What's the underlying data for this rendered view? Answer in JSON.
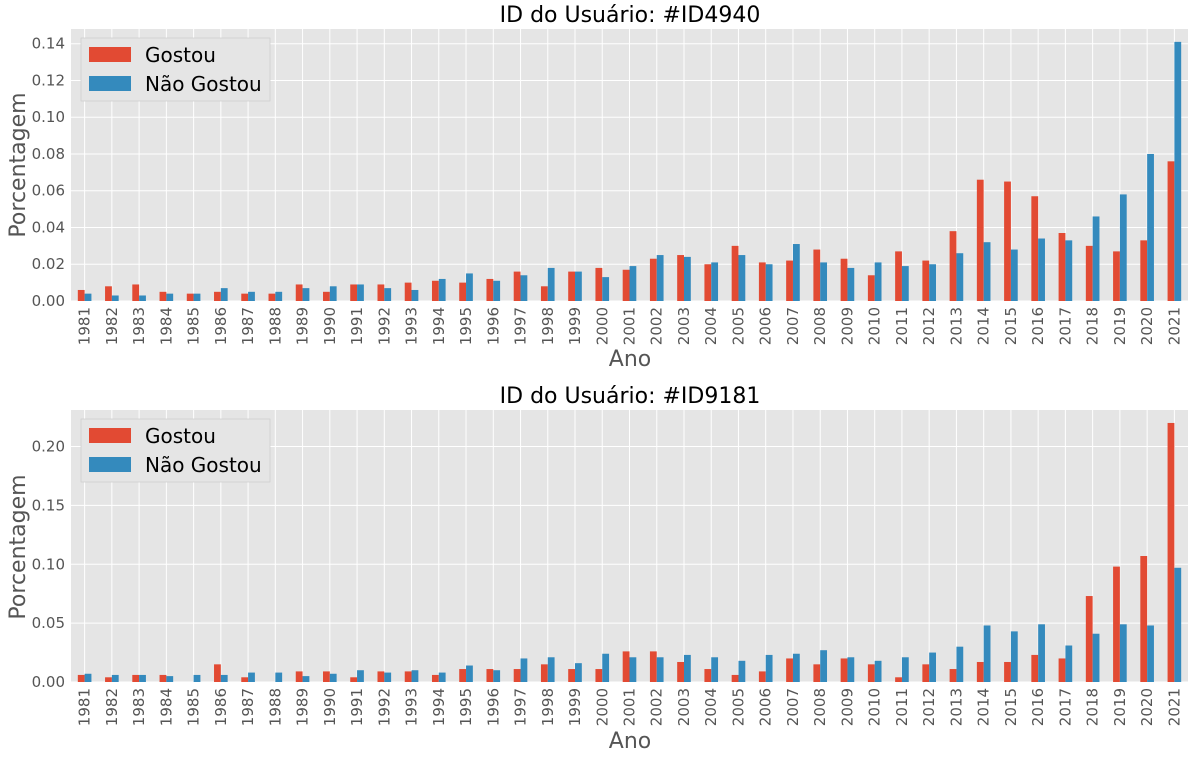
{
  "colors": {
    "gostou": "#E24A33",
    "nao_gostou": "#348ABD",
    "background": "#E5E5E5",
    "grid": "#FFFFFF"
  },
  "chart_data": [
    {
      "type": "bar",
      "title": "ID do Usuário: #ID4940",
      "xlabel": "Ano",
      "ylabel": "Porcentagem",
      "grid": true,
      "legend_position": "top-left",
      "ylim": [
        0,
        0.148
      ],
      "yticks": [
        "0.00",
        "0.02",
        "0.04",
        "0.06",
        "0.08",
        "0.10",
        "0.12",
        "0.14"
      ],
      "categories": [
        "1981",
        "1982",
        "1983",
        "1984",
        "1985",
        "1986",
        "1987",
        "1988",
        "1989",
        "1990",
        "1991",
        "1992",
        "1993",
        "1994",
        "1995",
        "1996",
        "1997",
        "1998",
        "1999",
        "2000",
        "2001",
        "2002",
        "2003",
        "2004",
        "2005",
        "2006",
        "2007",
        "2008",
        "2009",
        "2010",
        "2011",
        "2012",
        "2013",
        "2014",
        "2015",
        "2016",
        "2017",
        "2018",
        "2019",
        "2020",
        "2021"
      ],
      "series": [
        {
          "name": "Gostou",
          "values": [
            0.006,
            0.008,
            0.009,
            0.005,
            0.004,
            0.005,
            0.004,
            0.004,
            0.009,
            0.005,
            0.009,
            0.009,
            0.01,
            0.011,
            0.01,
            0.012,
            0.016,
            0.008,
            0.016,
            0.018,
            0.017,
            0.023,
            0.025,
            0.02,
            0.03,
            0.021,
            0.022,
            0.028,
            0.023,
            0.014,
            0.027,
            0.022,
            0.038,
            0.066,
            0.065,
            0.057,
            0.037,
            0.03,
            0.027,
            0.033,
            0.076
          ]
        },
        {
          "name": "Não Gostou",
          "values": [
            0.004,
            0.003,
            0.003,
            0.004,
            0.004,
            0.007,
            0.005,
            0.005,
            0.007,
            0.008,
            0.009,
            0.007,
            0.006,
            0.012,
            0.015,
            0.011,
            0.014,
            0.018,
            0.016,
            0.013,
            0.019,
            0.025,
            0.024,
            0.021,
            0.025,
            0.02,
            0.031,
            0.021,
            0.018,
            0.021,
            0.019,
            0.02,
            0.026,
            0.032,
            0.028,
            0.034,
            0.033,
            0.046,
            0.058,
            0.08,
            0.141
          ]
        }
      ]
    },
    {
      "type": "bar",
      "title": "ID do Usuário: #ID9181",
      "xlabel": "Ano",
      "ylabel": "Porcentagem",
      "grid": true,
      "legend_position": "top-left",
      "ylim": [
        0,
        0.231
      ],
      "yticks": [
        "0.00",
        "0.05",
        "0.10",
        "0.15",
        "0.20"
      ],
      "categories": [
        "1981",
        "1982",
        "1983",
        "1984",
        "1985",
        "1986",
        "1987",
        "1988",
        "1989",
        "1990",
        "1991",
        "1992",
        "1993",
        "1994",
        "1995",
        "1996",
        "1997",
        "1998",
        "1999",
        "2000",
        "2001",
        "2002",
        "2003",
        "2004",
        "2005",
        "2006",
        "2007",
        "2008",
        "2009",
        "2010",
        "2011",
        "2012",
        "2013",
        "2014",
        "2015",
        "2016",
        "2017",
        "2018",
        "2019",
        "2020",
        "2021"
      ],
      "series": [
        {
          "name": "Gostou",
          "values": [
            0.006,
            0.004,
            0.006,
            0.006,
            0.0,
            0.015,
            0.004,
            0.0,
            0.009,
            0.009,
            0.004,
            0.009,
            0.009,
            0.006,
            0.011,
            0.011,
            0.011,
            0.015,
            0.011,
            0.011,
            0.026,
            0.026,
            0.017,
            0.011,
            0.006,
            0.009,
            0.02,
            0.015,
            0.02,
            0.015,
            0.004,
            0.015,
            0.011,
            0.017,
            0.017,
            0.023,
            0.02,
            0.073,
            0.098,
            0.107,
            0.22
          ]
        },
        {
          "name": "Não Gostou",
          "values": [
            0.007,
            0.006,
            0.006,
            0.005,
            0.006,
            0.006,
            0.008,
            0.008,
            0.005,
            0.007,
            0.01,
            0.008,
            0.01,
            0.008,
            0.014,
            0.01,
            0.02,
            0.021,
            0.016,
            0.024,
            0.021,
            0.021,
            0.023,
            0.021,
            0.018,
            0.023,
            0.024,
            0.027,
            0.021,
            0.018,
            0.021,
            0.025,
            0.03,
            0.048,
            0.043,
            0.049,
            0.031,
            0.041,
            0.049,
            0.048,
            0.097
          ]
        }
      ]
    }
  ]
}
